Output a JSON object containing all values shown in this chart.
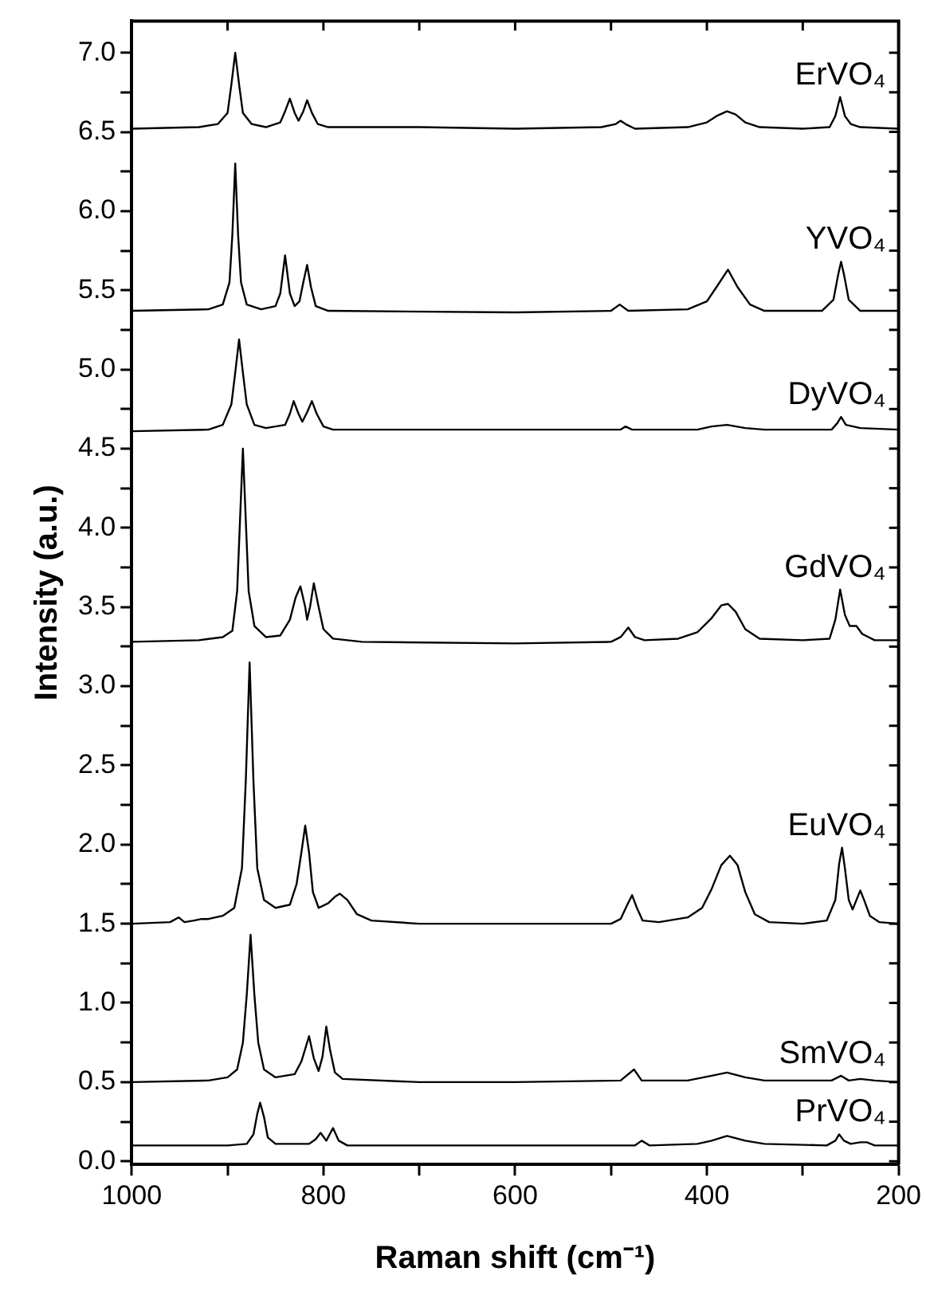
{
  "chart_data": {
    "type": "line",
    "xlabel": "Raman shift (cm⁻¹)",
    "ylabel": "Intensity (a.u.)",
    "xlim": [
      1000,
      200
    ],
    "ylim": [
      -0.02,
      7.2
    ],
    "xticks": [
      1000,
      {
        "value": 900,
        "label": null
      },
      800,
      {
        "value": 700,
        "label": null
      },
      600,
      {
        "value": 500,
        "label": null
      },
      400,
      {
        "value": 300,
        "label": null
      },
      200
    ],
    "yticks": [
      {
        "value": 0,
        "label": "0.0"
      },
      {
        "value": 0.25,
        "label": null
      },
      {
        "value": 0.5,
        "label": "0.5"
      },
      {
        "value": 0.75,
        "label": null
      },
      {
        "value": 1,
        "label": "1.0"
      },
      {
        "value": 1.25,
        "label": null
      },
      {
        "value": 1.5,
        "label": "1.5"
      },
      {
        "value": 1.75,
        "label": null
      },
      {
        "value": 2,
        "label": "2.0"
      },
      {
        "value": 2.25,
        "label": null
      },
      {
        "value": 2.5,
        "label": "2.5"
      },
      {
        "value": 2.75,
        "label": null
      },
      {
        "value": 3,
        "label": "3.0"
      },
      {
        "value": 3.25,
        "label": null
      },
      {
        "value": 3.5,
        "label": "3.5"
      },
      {
        "value": 3.75,
        "label": null
      },
      {
        "value": 4,
        "label": "4.0"
      },
      {
        "value": 4.25,
        "label": null
      },
      {
        "value": 4.5,
        "label": "4.5"
      },
      {
        "value": 4.75,
        "label": null
      },
      {
        "value": 5,
        "label": "5.0"
      },
      {
        "value": 5.25,
        "label": null
      },
      {
        "value": 5.5,
        "label": "5.5"
      },
      {
        "value": 5.75,
        "label": null
      },
      {
        "value": 6,
        "label": "6.0"
      },
      {
        "value": 6.25,
        "label": null
      },
      {
        "value": 6.5,
        "label": "6.5"
      },
      {
        "value": 6.75,
        "label": null
      },
      {
        "value": 7,
        "label": "7.0"
      }
    ],
    "grid": false,
    "legend": "right",
    "marker": "none",
    "line_style": "solid",
    "series": [
      {
        "name": "ErVO₄",
        "color": "#000000",
        "x": [
          1000,
          930,
          910,
          900,
          896,
          892,
          888,
          884,
          875,
          860,
          845,
          840,
          835,
          830,
          826,
          821,
          817,
          812,
          806,
          795,
          700,
          600,
          510,
          495,
          490,
          485,
          475,
          420,
          400,
          390,
          379,
          370,
          360,
          345,
          300,
          272,
          266,
          261,
          256,
          250,
          240,
          200
        ],
        "values": [
          6.52,
          6.53,
          6.55,
          6.62,
          6.8,
          7.0,
          6.8,
          6.62,
          6.55,
          6.53,
          6.56,
          6.63,
          6.71,
          6.62,
          6.57,
          6.63,
          6.7,
          6.62,
          6.55,
          6.53,
          6.53,
          6.52,
          6.53,
          6.55,
          6.57,
          6.55,
          6.52,
          6.53,
          6.56,
          6.6,
          6.63,
          6.61,
          6.56,
          6.53,
          6.52,
          6.53,
          6.6,
          6.72,
          6.6,
          6.55,
          6.53,
          6.52
        ]
      },
      {
        "name": "YVO₄",
        "color": "#000000",
        "x": [
          1000,
          920,
          905,
          898,
          895,
          892,
          889,
          886,
          880,
          865,
          850,
          845,
          840,
          835,
          830,
          825,
          821,
          817,
          813,
          808,
          795,
          600,
          500,
          491,
          482,
          420,
          400,
          390,
          378,
          368,
          355,
          340,
          280,
          268,
          263,
          260,
          257,
          252,
          240,
          200
        ],
        "values": [
          5.37,
          5.38,
          5.41,
          5.55,
          5.85,
          6.3,
          5.85,
          5.55,
          5.41,
          5.38,
          5.4,
          5.48,
          5.72,
          5.48,
          5.4,
          5.43,
          5.55,
          5.66,
          5.52,
          5.4,
          5.37,
          5.36,
          5.37,
          5.41,
          5.37,
          5.38,
          5.43,
          5.52,
          5.63,
          5.52,
          5.41,
          5.37,
          5.37,
          5.44,
          5.6,
          5.68,
          5.6,
          5.44,
          5.37,
          5.37
        ]
      },
      {
        "name": "DyVO₄",
        "color": "#000000",
        "x": [
          1000,
          920,
          905,
          896,
          892,
          888,
          884,
          880,
          872,
          860,
          840,
          835,
          831,
          826,
          822,
          817,
          812,
          807,
          800,
          790,
          600,
          490,
          485,
          478,
          410,
          395,
          379,
          360,
          340,
          270,
          264,
          260,
          255,
          240,
          200
        ],
        "values": [
          4.61,
          4.62,
          4.65,
          4.78,
          4.98,
          5.19,
          4.98,
          4.78,
          4.65,
          4.63,
          4.65,
          4.72,
          4.8,
          4.72,
          4.67,
          4.73,
          4.8,
          4.72,
          4.64,
          4.62,
          4.62,
          4.62,
          4.64,
          4.62,
          4.62,
          4.64,
          4.65,
          4.63,
          4.62,
          4.62,
          4.66,
          4.7,
          4.65,
          4.63,
          4.62
        ]
      },
      {
        "name": "GdVO₄",
        "color": "#000000",
        "x": [
          1000,
          930,
          905,
          895,
          890,
          887,
          884,
          881,
          878,
          872,
          860,
          845,
          835,
          829,
          824,
          819,
          817,
          814,
          810,
          805,
          800,
          790,
          760,
          600,
          500,
          490,
          482,
          475,
          465,
          430,
          410,
          395,
          385,
          378,
          370,
          360,
          345,
          300,
          272,
          266,
          261,
          256,
          251,
          244,
          238,
          225,
          200
        ],
        "values": [
          3.28,
          3.29,
          3.31,
          3.35,
          3.6,
          4.05,
          4.5,
          4.05,
          3.6,
          3.38,
          3.31,
          3.32,
          3.42,
          3.56,
          3.63,
          3.5,
          3.42,
          3.5,
          3.65,
          3.5,
          3.36,
          3.3,
          3.28,
          3.27,
          3.28,
          3.31,
          3.37,
          3.31,
          3.29,
          3.3,
          3.34,
          3.43,
          3.51,
          3.52,
          3.47,
          3.36,
          3.3,
          3.29,
          3.3,
          3.42,
          3.61,
          3.45,
          3.38,
          3.38,
          3.33,
          3.29,
          3.29
        ]
      },
      {
        "name": "EuVO₄",
        "color": "#000000",
        "x": [
          1000,
          960,
          951,
          945,
          935,
          927,
          920,
          905,
          893,
          885,
          881,
          877,
          873,
          869,
          862,
          850,
          835,
          828,
          823,
          819,
          815,
          811,
          805,
          795,
          788,
          783,
          775,
          765,
          750,
          700,
          600,
          500,
          490,
          483,
          478,
          473,
          467,
          450,
          420,
          405,
          395,
          385,
          376,
          368,
          360,
          350,
          335,
          300,
          275,
          266,
          262,
          259,
          256,
          252,
          248,
          244,
          240,
          236,
          230,
          220,
          200
        ],
        "values": [
          1.5,
          1.51,
          1.54,
          1.51,
          1.52,
          1.53,
          1.53,
          1.55,
          1.6,
          1.85,
          2.4,
          3.15,
          2.4,
          1.85,
          1.65,
          1.6,
          1.62,
          1.75,
          1.95,
          2.12,
          1.95,
          1.7,
          1.6,
          1.63,
          1.67,
          1.69,
          1.65,
          1.56,
          1.52,
          1.5,
          1.5,
          1.5,
          1.53,
          1.62,
          1.68,
          1.6,
          1.52,
          1.51,
          1.54,
          1.6,
          1.72,
          1.87,
          1.93,
          1.87,
          1.7,
          1.56,
          1.51,
          1.5,
          1.52,
          1.65,
          1.88,
          1.98,
          1.85,
          1.65,
          1.59,
          1.65,
          1.71,
          1.65,
          1.55,
          1.51,
          1.5
        ]
      },
      {
        "name": "SmVO₄",
        "color": "#000000",
        "x": [
          1000,
          920,
          900,
          890,
          884,
          880,
          876,
          872,
          868,
          862,
          850,
          830,
          823,
          815,
          810,
          805,
          801,
          797,
          793,
          788,
          780,
          700,
          600,
          490,
          476,
          468,
          420,
          395,
          379,
          360,
          340,
          270,
          260,
          252,
          240,
          225,
          200
        ],
        "values": [
          0.5,
          0.51,
          0.53,
          0.58,
          0.75,
          1.05,
          1.43,
          1.05,
          0.75,
          0.58,
          0.53,
          0.55,
          0.63,
          0.79,
          0.65,
          0.57,
          0.66,
          0.85,
          0.7,
          0.56,
          0.52,
          0.5,
          0.5,
          0.51,
          0.58,
          0.51,
          0.51,
          0.54,
          0.56,
          0.53,
          0.51,
          0.51,
          0.54,
          0.51,
          0.52,
          0.51,
          0.5
        ]
      },
      {
        "name": "PrVO₄",
        "color": "#000000",
        "x": [
          1000,
          900,
          880,
          873,
          869,
          866,
          862,
          858,
          850,
          815,
          808,
          803,
          797,
          790,
          784,
          775,
          600,
          475,
          468,
          460,
          410,
          395,
          379,
          360,
          340,
          275,
          266,
          262,
          257,
          250,
          240,
          233,
          225,
          200
        ],
        "values": [
          0.1,
          0.1,
          0.11,
          0.17,
          0.3,
          0.37,
          0.28,
          0.15,
          0.11,
          0.11,
          0.14,
          0.18,
          0.13,
          0.21,
          0.13,
          0.1,
          0.1,
          0.1,
          0.13,
          0.1,
          0.11,
          0.13,
          0.16,
          0.13,
          0.11,
          0.1,
          0.13,
          0.17,
          0.13,
          0.11,
          0.12,
          0.12,
          0.1,
          0.1
        ]
      }
    ]
  }
}
